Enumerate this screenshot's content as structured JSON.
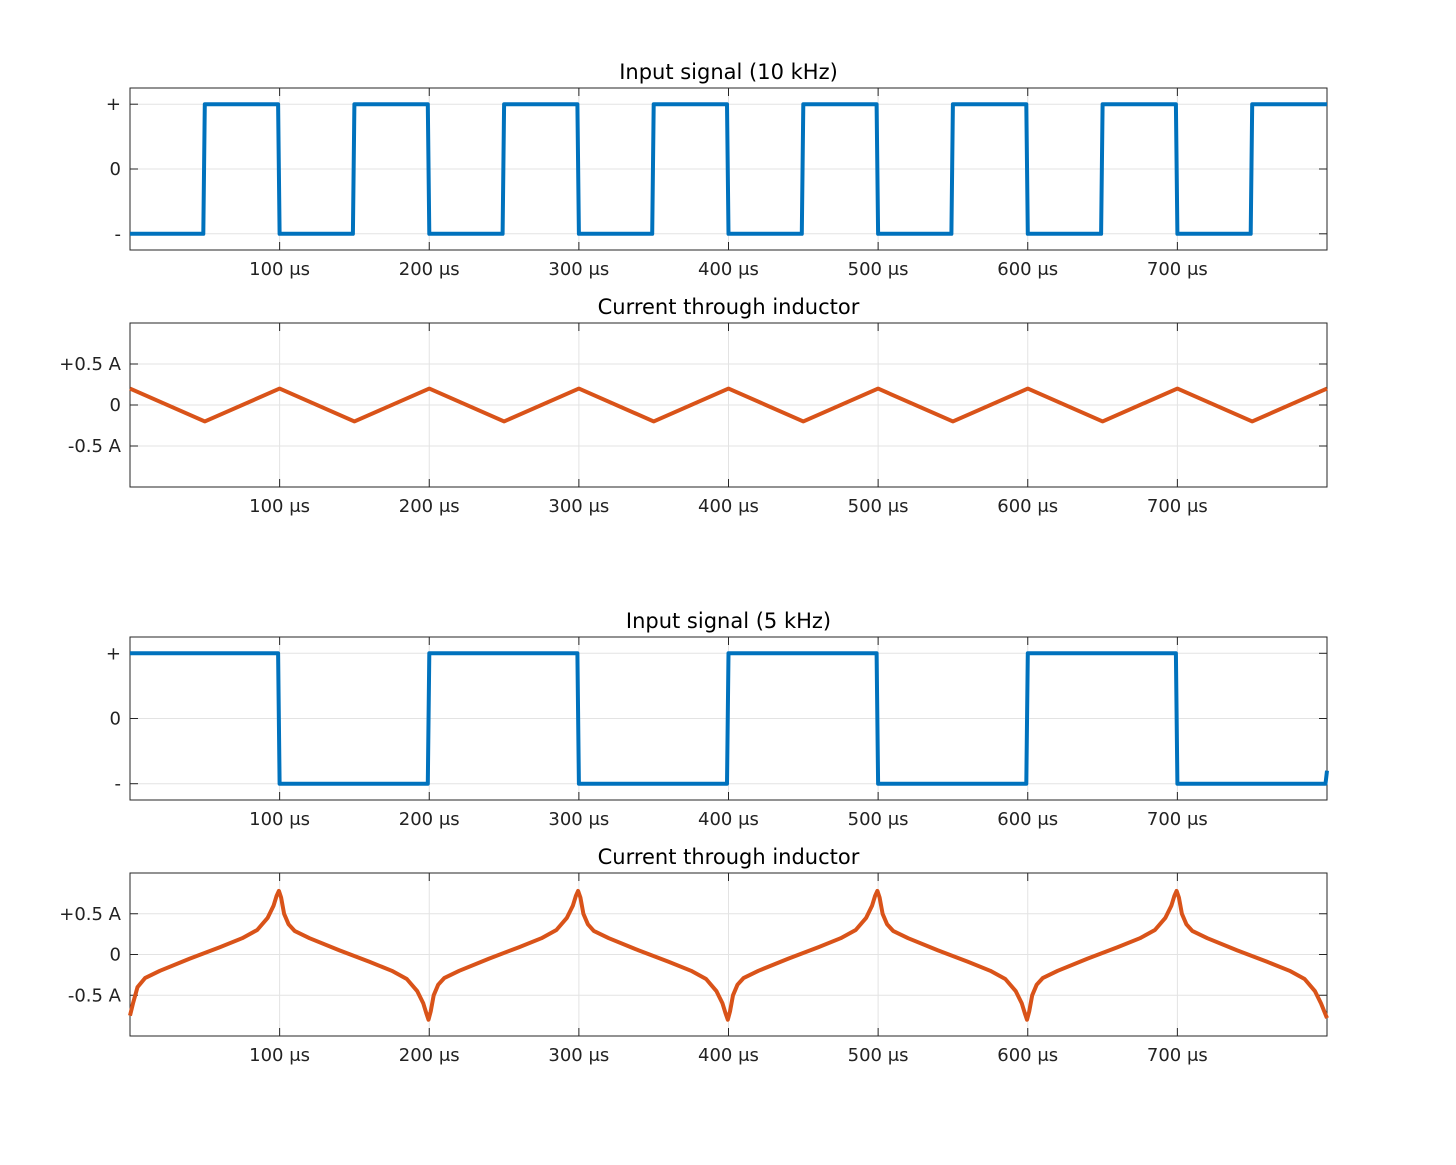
{
  "chart_data": [
    {
      "type": "line",
      "title": "Input signal (10 kHz)",
      "xlabel": "",
      "ylabel": "",
      "xlim": [
        0,
        800
      ],
      "ylim": [
        -1.25,
        1.25
      ],
      "x_ticks": [
        100,
        200,
        300,
        400,
        500,
        600,
        700
      ],
      "x_tick_labels": [
        "100 μs",
        "200 μs",
        "300 μs",
        "400 μs",
        "500 μs",
        "600 μs",
        "700 μs"
      ],
      "y_ticks": [
        -1,
        0,
        1
      ],
      "y_tick_labels": [
        "-",
        "0",
        "+"
      ],
      "grid": true,
      "color": "#0072BD",
      "series": [
        {
          "x": [
            0,
            49,
            50,
            99,
            100,
            149,
            150,
            199,
            200,
            249,
            250,
            299,
            300,
            349,
            350,
            399,
            400,
            449,
            450,
            499,
            500,
            549,
            550,
            599,
            600,
            649,
            650,
            699,
            700,
            749,
            750,
            800
          ],
          "y": [
            -1,
            -1,
            1,
            1,
            -1,
            -1,
            1,
            1,
            -1,
            -1,
            1,
            1,
            -1,
            -1,
            1,
            1,
            -1,
            -1,
            1,
            1,
            -1,
            -1,
            1,
            1,
            -1,
            -1,
            1,
            1,
            -1,
            -1,
            1,
            1
          ]
        }
      ]
    },
    {
      "type": "line",
      "title": "Current through inductor",
      "xlabel": "",
      "ylabel": "",
      "xlim": [
        0,
        800
      ],
      "ylim": [
        -1,
        1
      ],
      "x_ticks": [
        100,
        200,
        300,
        400,
        500,
        600,
        700
      ],
      "x_tick_labels": [
        "100 μs",
        "200 μs",
        "300 μs",
        "400 μs",
        "500 μs",
        "600 μs",
        "700 μs"
      ],
      "y_ticks": [
        -0.5,
        0,
        0.5
      ],
      "y_tick_labels": [
        "-0.5 A",
        "0",
        "+0.5 A"
      ],
      "grid": true,
      "color": "#D95319",
      "series": [
        {
          "x": [
            0,
            50,
            100,
            150,
            200,
            250,
            300,
            350,
            400,
            450,
            500,
            550,
            600,
            650,
            700,
            750,
            800
          ],
          "y": [
            0.2,
            -0.2,
            0.2,
            -0.2,
            0.2,
            -0.2,
            0.2,
            -0.2,
            0.2,
            -0.2,
            0.2,
            -0.2,
            0.2,
            -0.2,
            0.2,
            -0.2,
            0.2
          ]
        }
      ]
    },
    {
      "type": "line",
      "title": "Input signal (5 kHz)",
      "xlabel": "",
      "ylabel": "",
      "xlim": [
        0,
        800
      ],
      "ylim": [
        -1.25,
        1.25
      ],
      "x_ticks": [
        100,
        200,
        300,
        400,
        500,
        600,
        700
      ],
      "x_tick_labels": [
        "100 μs",
        "200 μs",
        "300 μs",
        "400 μs",
        "500 μs",
        "600 μs",
        "700 μs"
      ],
      "y_ticks": [
        -1,
        0,
        1
      ],
      "y_tick_labels": [
        "-",
        "0",
        "+"
      ],
      "grid": true,
      "color": "#0072BD",
      "series": [
        {
          "x": [
            0,
            99,
            100,
            199,
            200,
            299,
            300,
            399,
            400,
            499,
            500,
            599,
            600,
            699,
            700,
            799,
            800
          ],
          "y": [
            1,
            1,
            -1,
            -1,
            1,
            1,
            -1,
            -1,
            1,
            1,
            -1,
            -1,
            1,
            1,
            -1,
            -1,
            -0.8
          ]
        }
      ]
    },
    {
      "type": "line",
      "title": "Current through inductor",
      "xlabel": "",
      "ylabel": "",
      "xlim": [
        0,
        800
      ],
      "ylim": [
        -1,
        1
      ],
      "x_ticks": [
        100,
        200,
        300,
        400,
        500,
        600,
        700
      ],
      "x_tick_labels": [
        "100 μs",
        "200 μs",
        "300 μs",
        "400 μs",
        "500 μs",
        "600 μs",
        "700 μs"
      ],
      "y_ticks": [
        -0.5,
        0,
        0.5
      ],
      "y_tick_labels": [
        "-0.5 A",
        "0",
        "+0.5 A"
      ],
      "grid": true,
      "color": "#D95319",
      "series": [
        {
          "x": [
            0,
            2,
            5,
            10,
            20,
            40,
            60,
            75,
            85,
            92,
            96,
            98,
            99.5,
            101,
            103,
            106,
            110,
            120,
            140,
            160,
            175,
            185,
            192,
            196,
            198,
            199.5,
            201,
            203,
            206,
            210,
            220,
            240,
            260,
            275,
            285,
            292,
            296,
            298,
            299.5,
            301,
            303,
            306,
            310,
            320,
            340,
            360,
            375,
            385,
            392,
            396,
            398,
            399.5,
            401,
            403,
            406,
            410,
            420,
            440,
            460,
            475,
            485,
            492,
            496,
            498,
            499.5,
            501,
            503,
            506,
            510,
            520,
            540,
            560,
            575,
            585,
            592,
            596,
            598,
            599.5,
            601,
            603,
            606,
            610,
            620,
            640,
            660,
            675,
            685,
            692,
            696,
            698,
            699.5,
            701,
            703,
            706,
            710,
            720,
            740,
            760,
            775,
            785,
            792,
            796,
            800
          ],
          "y": [
            -0.75,
            -0.6,
            -0.4,
            -0.29,
            -0.2,
            -0.05,
            0.09,
            0.2,
            0.3,
            0.45,
            0.6,
            0.72,
            0.78,
            0.7,
            0.5,
            0.37,
            0.29,
            0.2,
            0.05,
            -0.09,
            -0.2,
            -0.3,
            -0.45,
            -0.6,
            -0.72,
            -0.8,
            -0.7,
            -0.5,
            -0.37,
            -0.29,
            -0.2,
            -0.05,
            0.09,
            0.2,
            0.3,
            0.45,
            0.6,
            0.72,
            0.78,
            0.7,
            0.5,
            0.37,
            0.29,
            0.2,
            0.05,
            -0.09,
            -0.2,
            -0.3,
            -0.45,
            -0.6,
            -0.72,
            -0.8,
            -0.7,
            -0.5,
            -0.37,
            -0.29,
            -0.2,
            -0.05,
            0.09,
            0.2,
            0.3,
            0.45,
            0.6,
            0.72,
            0.78,
            0.7,
            0.5,
            0.37,
            0.29,
            0.2,
            0.05,
            -0.09,
            -0.2,
            -0.3,
            -0.45,
            -0.6,
            -0.72,
            -0.8,
            -0.7,
            -0.5,
            -0.37,
            -0.29,
            -0.2,
            -0.05,
            0.09,
            0.2,
            0.3,
            0.45,
            0.6,
            0.72,
            0.78,
            0.7,
            0.5,
            0.37,
            0.29,
            0.2,
            0.05,
            -0.09,
            -0.2,
            -0.3,
            -0.45,
            -0.6,
            -0.78
          ]
        }
      ]
    }
  ]
}
